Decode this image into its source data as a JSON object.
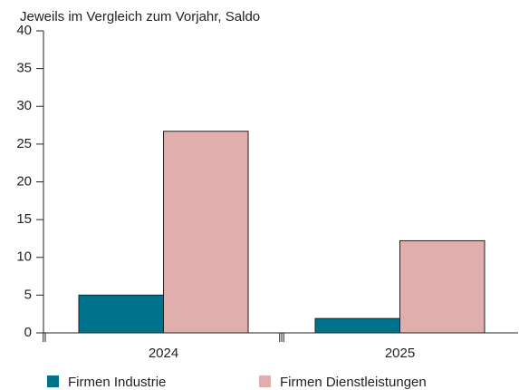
{
  "chart_data": {
    "type": "bar",
    "title": "Jeweils im Vergleich zum Vorjahr, Saldo",
    "categories": [
      "2024",
      "2025"
    ],
    "series": [
      {
        "name": "Firmen Industrie",
        "color": "#00738c",
        "values": [
          5.0,
          1.9
        ]
      },
      {
        "name": "Firmen Dienstleistungen",
        "color": "#e0aeac",
        "values": [
          26.7,
          12.2
        ]
      }
    ],
    "ylim": [
      0,
      40
    ],
    "yticks": [
      0,
      5,
      10,
      15,
      20,
      25,
      30,
      35,
      40
    ],
    "grid": false
  }
}
